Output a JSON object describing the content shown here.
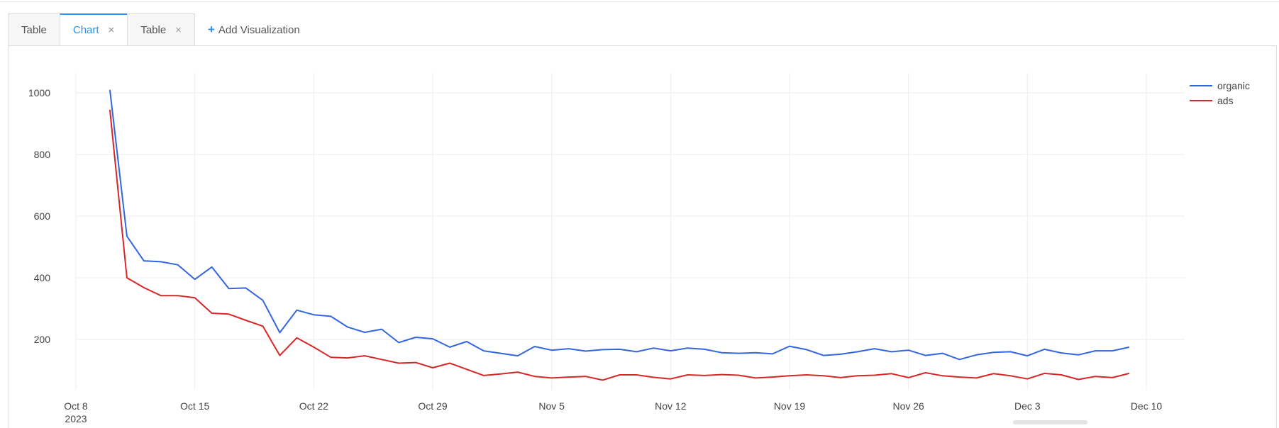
{
  "tabs": [
    {
      "label": "Table",
      "active": false,
      "closable": false
    },
    {
      "label": "Chart",
      "active": true,
      "closable": true
    },
    {
      "label": "Table",
      "active": false,
      "closable": true
    }
  ],
  "close_glyph": "×",
  "add_visualization": {
    "label": "Add Visualization",
    "icon": "plus-icon"
  },
  "colors": {
    "accent": "#2f8fe6",
    "organic": "#3366dd",
    "ads": "#d62728"
  },
  "chart_data": {
    "type": "line",
    "xlabel": "",
    "ylabel": "",
    "x_ticks": [
      "Oct 8",
      "Oct 15",
      "Oct 22",
      "Oct 29",
      "Nov 5",
      "Nov 12",
      "Nov 19",
      "Nov 26",
      "Dec 3",
      "Dec 10"
    ],
    "x_year_label": "2023",
    "y_ticks": [
      200,
      400,
      600,
      800,
      1000
    ],
    "ylim": [
      20,
      1060
    ],
    "xlim": [
      "2023-10-08",
      "2023-12-10"
    ],
    "grid": true,
    "legend_position": "top-right",
    "x": [
      "2023-10-10",
      "2023-10-11",
      "2023-10-12",
      "2023-10-13",
      "2023-10-14",
      "2023-10-15",
      "2023-10-16",
      "2023-10-17",
      "2023-10-18",
      "2023-10-19",
      "2023-10-20",
      "2023-10-21",
      "2023-10-22",
      "2023-10-23",
      "2023-10-24",
      "2023-10-25",
      "2023-10-26",
      "2023-10-27",
      "2023-10-28",
      "2023-10-29",
      "2023-10-30",
      "2023-10-31",
      "2023-11-01",
      "2023-11-02",
      "2023-11-03",
      "2023-11-04",
      "2023-11-05",
      "2023-11-06",
      "2023-11-07",
      "2023-11-08",
      "2023-11-09",
      "2023-11-10",
      "2023-11-11",
      "2023-11-12",
      "2023-11-13",
      "2023-11-14",
      "2023-11-15",
      "2023-11-16",
      "2023-11-17",
      "2023-11-18",
      "2023-11-19",
      "2023-11-20",
      "2023-11-21",
      "2023-11-22",
      "2023-11-23",
      "2023-11-24",
      "2023-11-25",
      "2023-11-26",
      "2023-11-27",
      "2023-11-28",
      "2023-11-29",
      "2023-11-30",
      "2023-12-01",
      "2023-12-02",
      "2023-12-03",
      "2023-12-04",
      "2023-12-05",
      "2023-12-06",
      "2023-12-07",
      "2023-12-08",
      "2023-12-09"
    ],
    "series": [
      {
        "name": "organic",
        "color": "#3366dd",
        "values": [
          1010,
          535,
          455,
          452,
          442,
          395,
          435,
          365,
          367,
          327,
          222,
          295,
          280,
          275,
          240,
          223,
          233,
          190,
          207,
          202,
          175,
          193,
          163,
          155,
          147,
          177,
          165,
          170,
          162,
          167,
          168,
          160,
          172,
          163,
          172,
          168,
          157,
          155,
          157,
          153,
          178,
          167,
          148,
          152,
          160,
          170,
          160,
          165,
          148,
          155,
          135,
          150,
          158,
          160,
          147,
          168,
          156,
          150,
          163,
          163,
          175
        ]
      },
      {
        "name": "ads",
        "color": "#d62728",
        "values": [
          945,
          400,
          368,
          342,
          342,
          335,
          285,
          282,
          262,
          243,
          148,
          205,
          175,
          142,
          140,
          147,
          135,
          123,
          125,
          108,
          123,
          103,
          83,
          88,
          94,
          80,
          75,
          78,
          80,
          68,
          85,
          85,
          77,
          72,
          85,
          83,
          86,
          84,
          75,
          78,
          82,
          85,
          82,
          76,
          82,
          84,
          89,
          76,
          92,
          82,
          78,
          75,
          89,
          82,
          72,
          90,
          85,
          70,
          80,
          76,
          90
        ]
      }
    ]
  }
}
